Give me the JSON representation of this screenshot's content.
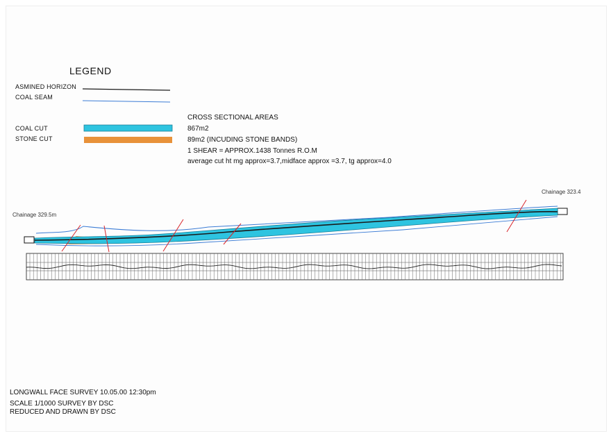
{
  "legend": {
    "title": "LEGEND",
    "items": [
      {
        "label": "ASMINED HORIZON"
      },
      {
        "label": "COAL SEAM"
      },
      {
        "label": "COAL CUT"
      },
      {
        "label": "STONE CUT"
      }
    ]
  },
  "areas": {
    "title": "CROSS SECTIONAL AREAS",
    "coal_cut": "867m2",
    "stone_cut": "89m2 (INCUDING STONE BANDS)",
    "shear": "1 SHEAR = APPROX.1438 Tonnes R.O.M",
    "average": "average cut ht mg approx=3.7,midface approx =3.7, tg approx=4.0"
  },
  "section": {
    "chainage_left": "Chainage 329.5m",
    "chainage_right": "Chainage 323.4"
  },
  "footer": {
    "title": "LONGWALL FACE SURVEY   10.05.00  12:30pm",
    "scale": "SCALE 1/1000    SURVEY BY DSC",
    "drawn": "REDUCED AND DRAWN BY DSC"
  },
  "colors": {
    "asmined": "#1a1a1a",
    "seam": "#3a7bd5",
    "coal_cut": "#2ec4e0",
    "stone_cut": "#e8923a",
    "shear_marks": "#d8242a"
  }
}
